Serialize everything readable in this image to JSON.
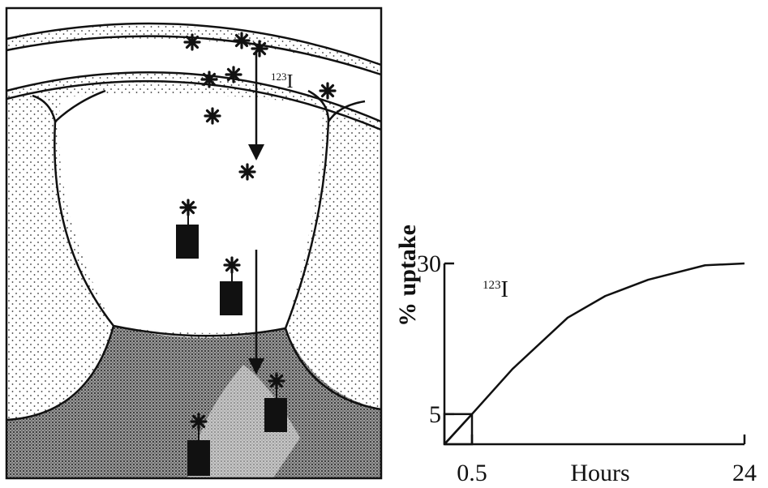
{
  "illustration": {
    "isotope_label": {
      "mass": "123",
      "element": "I"
    }
  },
  "chart": {
    "type": "line",
    "y_label": "% uptake",
    "x_label": "Hours",
    "annotation": {
      "mass": "123",
      "element": "I"
    },
    "x": [
      0,
      0.5,
      4,
      8.75,
      12,
      15.7,
      20.6,
      24
    ],
    "values": [
      0,
      5,
      12.5,
      21,
      24.6,
      27.3,
      29.7,
      30
    ],
    "xlim": [
      0,
      24
    ],
    "ylim": [
      0,
      30
    ],
    "xticks": [
      0.5,
      24
    ],
    "yticks": [
      5,
      30
    ]
  }
}
